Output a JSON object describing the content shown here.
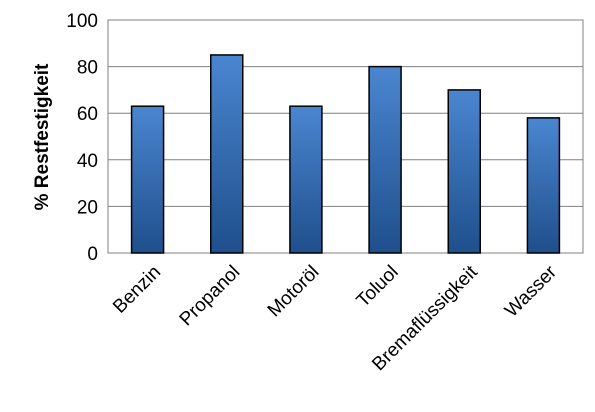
{
  "chart_data": {
    "type": "bar",
    "categories": [
      "Benzin",
      "Propanol",
      "Motoröl",
      "Toluol",
      "Bremaflüssigkeit",
      "Wasser"
    ],
    "values": [
      63,
      85,
      63,
      80,
      70,
      58
    ],
    "title": "",
    "xlabel": "",
    "ylabel": "% Restfestigkeit",
    "ylim": [
      0,
      100
    ],
    "yticks": [
      0,
      20,
      40,
      60,
      80,
      100
    ],
    "grid": true,
    "legend": "none",
    "colors": {
      "bar_top": "#4a86d0",
      "bar_bottom": "#1f4f8c",
      "bar_edge": "#000000",
      "grid": "#808080",
      "plot_frame": "#808080"
    }
  }
}
